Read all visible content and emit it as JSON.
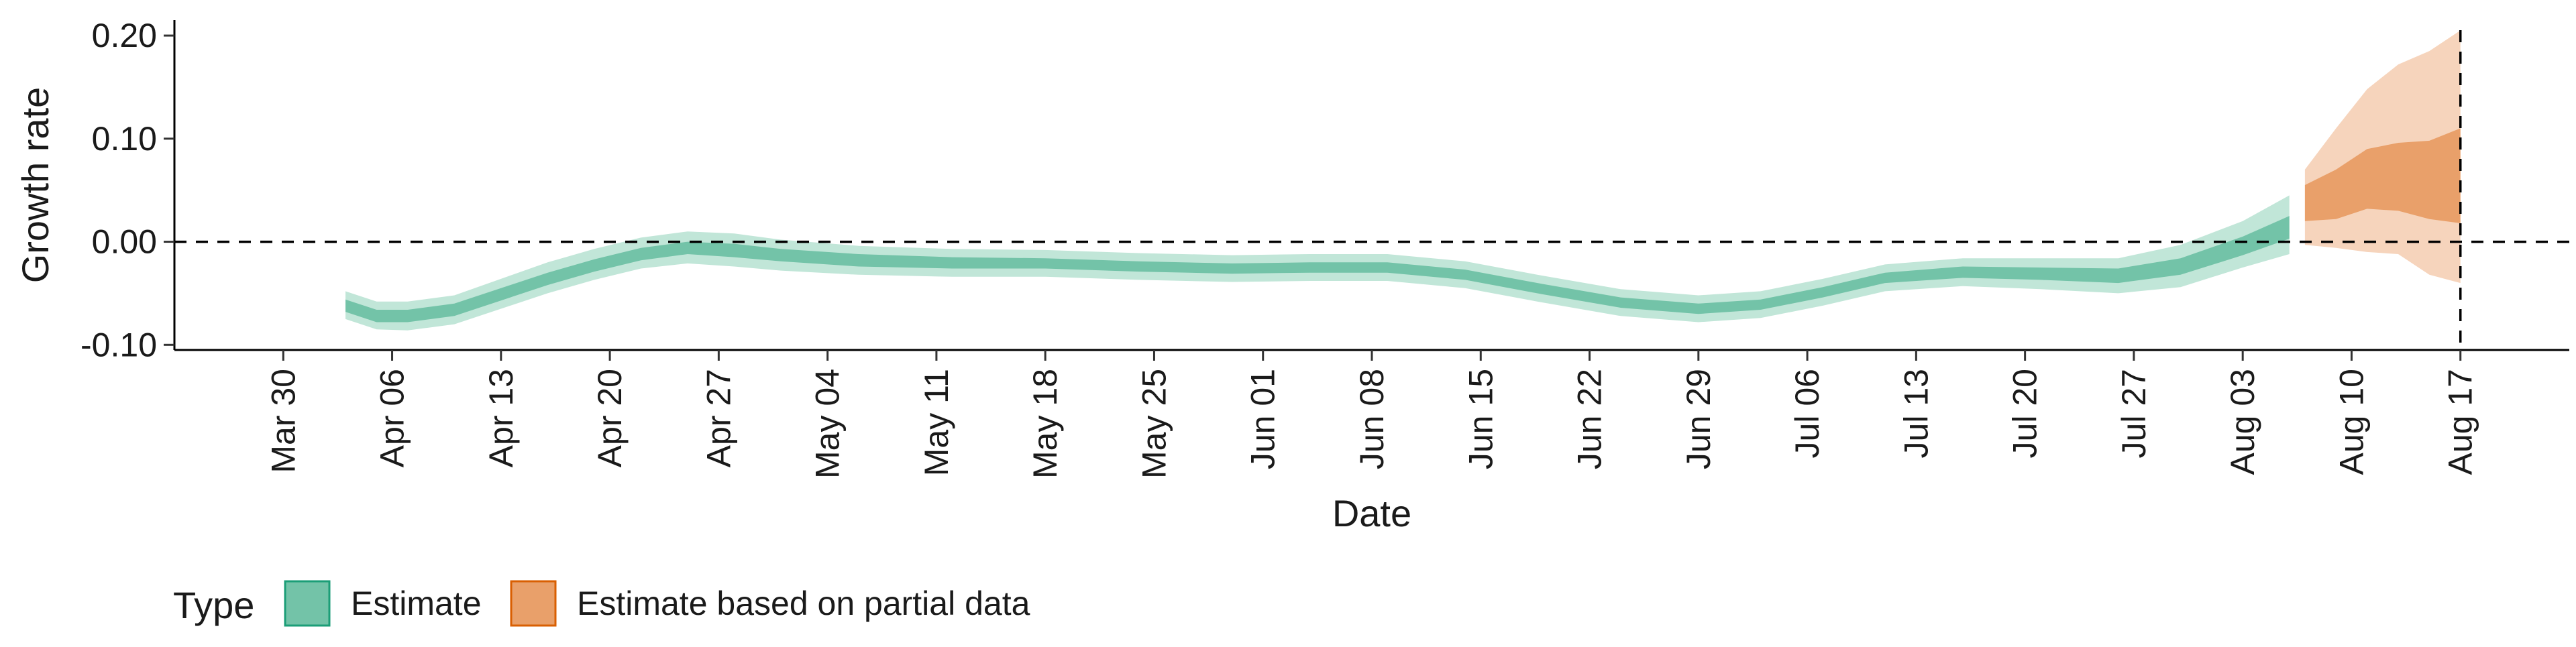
{
  "chart_data": {
    "type": "area",
    "xlabel": "Date",
    "ylabel": "Growth rate",
    "xlim": [
      "2020-03-23",
      "2020-08-24"
    ],
    "ylim": [
      -0.105,
      0.215
    ],
    "x_ticks": [
      "2020-03-30",
      "2020-04-06",
      "2020-04-13",
      "2020-04-20",
      "2020-04-27",
      "2020-05-04",
      "2020-05-11",
      "2020-05-18",
      "2020-05-25",
      "2020-06-01",
      "2020-06-08",
      "2020-06-15",
      "2020-06-22",
      "2020-06-29",
      "2020-07-06",
      "2020-07-13",
      "2020-07-20",
      "2020-07-27",
      "2020-08-03",
      "2020-08-10",
      "2020-08-17"
    ],
    "x_tick_labels": [
      "Mar 30",
      "Apr 06",
      "Apr 13",
      "Apr 20",
      "Apr 27",
      "May 04",
      "May 11",
      "May 18",
      "May 25",
      "Jun 01",
      "Jun 08",
      "Jun 15",
      "Jun 22",
      "Jun 29",
      "Jul 06",
      "Jul 13",
      "Jul 20",
      "Jul 27",
      "Aug 03",
      "Aug 10",
      "Aug 17"
    ],
    "y_ticks": [
      -0.1,
      0.0,
      0.1,
      0.2
    ],
    "y_tick_labels": [
      "-0.10",
      "0.00",
      "0.10",
      "0.20"
    ],
    "hline": 0.0,
    "vline": "2020-08-17",
    "legend": {
      "title": "Type",
      "position": "bottom-left",
      "entries": [
        "Estimate",
        "Estimate based on partial data"
      ]
    },
    "series": [
      {
        "name": "Estimate",
        "color": "#1b9e77",
        "x": [
          "2020-04-03",
          "2020-04-05",
          "2020-04-07",
          "2020-04-10",
          "2020-04-13",
          "2020-04-16",
          "2020-04-19",
          "2020-04-22",
          "2020-04-25",
          "2020-04-28",
          "2020-05-01",
          "2020-05-06",
          "2020-05-12",
          "2020-05-18",
          "2020-05-24",
          "2020-05-30",
          "2020-06-04",
          "2020-06-09",
          "2020-06-14",
          "2020-06-19",
          "2020-06-24",
          "2020-06-29",
          "2020-07-03",
          "2020-07-07",
          "2020-07-11",
          "2020-07-16",
          "2020-07-21",
          "2020-07-26",
          "2020-07-30",
          "2020-08-03",
          "2020-08-06"
        ],
        "outer_low": [
          -0.075,
          -0.085,
          -0.086,
          -0.08,
          -0.065,
          -0.05,
          -0.037,
          -0.026,
          -0.021,
          -0.024,
          -0.028,
          -0.032,
          -0.034,
          -0.034,
          -0.037,
          -0.039,
          -0.038,
          -0.038,
          -0.045,
          -0.059,
          -0.072,
          -0.078,
          -0.074,
          -0.062,
          -0.048,
          -0.043,
          -0.046,
          -0.05,
          -0.044,
          -0.025,
          -0.012
        ],
        "inner_low": [
          -0.068,
          -0.078,
          -0.078,
          -0.072,
          -0.057,
          -0.042,
          -0.029,
          -0.018,
          -0.012,
          -0.015,
          -0.019,
          -0.024,
          -0.026,
          -0.026,
          -0.029,
          -0.031,
          -0.03,
          -0.03,
          -0.037,
          -0.051,
          -0.064,
          -0.07,
          -0.066,
          -0.054,
          -0.04,
          -0.035,
          -0.037,
          -0.04,
          -0.032,
          -0.013,
          0.003
        ],
        "median": [
          -0.062,
          -0.072,
          -0.072,
          -0.066,
          -0.051,
          -0.036,
          -0.023,
          -0.012,
          -0.006,
          -0.008,
          -0.013,
          -0.018,
          -0.02,
          -0.021,
          -0.024,
          -0.026,
          -0.025,
          -0.025,
          -0.032,
          -0.046,
          -0.059,
          -0.065,
          -0.061,
          -0.049,
          -0.035,
          -0.03,
          -0.031,
          -0.033,
          -0.024,
          -0.004,
          0.014
        ],
        "inner_high": [
          -0.056,
          -0.066,
          -0.066,
          -0.06,
          -0.045,
          -0.03,
          -0.017,
          -0.006,
          0.0,
          -0.002,
          -0.007,
          -0.012,
          -0.015,
          -0.016,
          -0.019,
          -0.021,
          -0.02,
          -0.02,
          -0.027,
          -0.041,
          -0.054,
          -0.06,
          -0.056,
          -0.044,
          -0.03,
          -0.024,
          -0.025,
          -0.026,
          -0.016,
          0.005,
          0.025
        ],
        "outer_high": [
          -0.048,
          -0.058,
          -0.058,
          -0.052,
          -0.036,
          -0.02,
          -0.007,
          0.004,
          0.01,
          0.008,
          0.002,
          -0.004,
          -0.007,
          -0.008,
          -0.011,
          -0.013,
          -0.012,
          -0.012,
          -0.019,
          -0.033,
          -0.046,
          -0.052,
          -0.048,
          -0.036,
          -0.022,
          -0.016,
          -0.016,
          -0.016,
          -0.003,
          0.02,
          0.045
        ]
      },
      {
        "name": "Estimate based on partial data",
        "color": "#d95f02",
        "x": [
          "2020-08-07",
          "2020-08-09",
          "2020-08-11",
          "2020-08-13",
          "2020-08-15",
          "2020-08-17"
        ],
        "outer_low": [
          -0.003,
          -0.006,
          -0.01,
          -0.012,
          -0.032,
          -0.04
        ],
        "inner_low": [
          0.02,
          0.022,
          0.032,
          0.03,
          0.022,
          0.018
        ],
        "inner_high": [
          0.055,
          0.07,
          0.09,
          0.096,
          0.098,
          0.11
        ],
        "outer_high": [
          0.07,
          0.11,
          0.148,
          0.172,
          0.185,
          0.205
        ]
      }
    ]
  }
}
